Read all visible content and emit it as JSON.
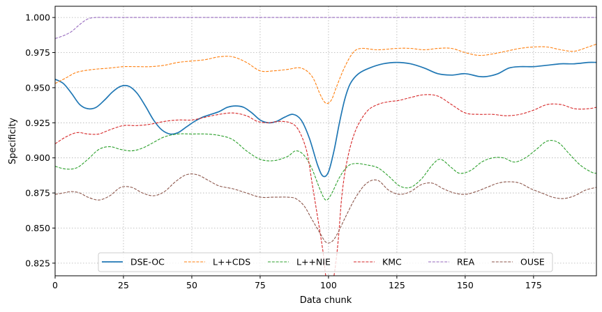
{
  "chart_data": {
    "type": "line",
    "title": "",
    "xlabel": "Data chunk",
    "ylabel": "Specificity",
    "xlim": [
      0,
      198
    ],
    "ylim": [
      0.816,
      1.008
    ],
    "xticks": [
      0,
      25,
      50,
      75,
      100,
      125,
      150,
      175
    ],
    "yticks": [
      0.825,
      0.85,
      0.875,
      0.9,
      0.925,
      0.95,
      0.975,
      1.0
    ],
    "ytick_labels": [
      "0.825",
      "0.850",
      "0.875",
      "0.900",
      "0.925",
      "0.950",
      "0.975",
      "1.000"
    ],
    "grid": true,
    "legend_position": "lower center",
    "series": [
      {
        "name": "DSE-OC",
        "color": "#1f77b4",
        "dash": "solid",
        "points": [
          [
            0,
            0.956
          ],
          [
            3,
            0.953
          ],
          [
            6,
            0.946
          ],
          [
            9,
            0.938
          ],
          [
            12,
            0.935
          ],
          [
            15,
            0.936
          ],
          [
            18,
            0.941
          ],
          [
            21,
            0.947
          ],
          [
            24,
            0.951
          ],
          [
            27,
            0.951
          ],
          [
            30,
            0.946
          ],
          [
            33,
            0.937
          ],
          [
            36,
            0.927
          ],
          [
            39,
            0.92
          ],
          [
            42,
            0.917
          ],
          [
            45,
            0.918
          ],
          [
            48,
            0.922
          ],
          [
            51,
            0.926
          ],
          [
            54,
            0.929
          ],
          [
            57,
            0.931
          ],
          [
            60,
            0.933
          ],
          [
            63,
            0.936
          ],
          [
            66,
            0.937
          ],
          [
            69,
            0.936
          ],
          [
            72,
            0.932
          ],
          [
            75,
            0.927
          ],
          [
            78,
            0.925
          ],
          [
            81,
            0.926
          ],
          [
            84,
            0.929
          ],
          [
            87,
            0.931
          ],
          [
            90,
            0.927
          ],
          [
            93,
            0.914
          ],
          [
            96,
            0.895
          ],
          [
            98,
            0.887
          ],
          [
            100,
            0.89
          ],
          [
            102,
            0.905
          ],
          [
            104,
            0.925
          ],
          [
            106,
            0.942
          ],
          [
            108,
            0.953
          ],
          [
            111,
            0.96
          ],
          [
            115,
            0.964
          ],
          [
            120,
            0.967
          ],
          [
            125,
            0.968
          ],
          [
            130,
            0.967
          ],
          [
            135,
            0.964
          ],
          [
            140,
            0.96
          ],
          [
            145,
            0.959
          ],
          [
            150,
            0.96
          ],
          [
            155,
            0.958
          ],
          [
            158,
            0.958
          ],
          [
            162,
            0.96
          ],
          [
            166,
            0.964
          ],
          [
            170,
            0.965
          ],
          [
            175,
            0.965
          ],
          [
            180,
            0.966
          ],
          [
            185,
            0.967
          ],
          [
            190,
            0.967
          ],
          [
            195,
            0.968
          ],
          [
            198,
            0.968
          ]
        ]
      },
      {
        "name": "L++CDS",
        "color": "#ff7f0e",
        "dash": "dashed",
        "points": [
          [
            0,
            0.953
          ],
          [
            4,
            0.957
          ],
          [
            8,
            0.961
          ],
          [
            14,
            0.963
          ],
          [
            20,
            0.964
          ],
          [
            25,
            0.965
          ],
          [
            30,
            0.965
          ],
          [
            35,
            0.965
          ],
          [
            40,
            0.966
          ],
          [
            45,
            0.968
          ],
          [
            50,
            0.969
          ],
          [
            55,
            0.97
          ],
          [
            60,
            0.972
          ],
          [
            65,
            0.972
          ],
          [
            70,
            0.968
          ],
          [
            75,
            0.962
          ],
          [
            80,
            0.962
          ],
          [
            85,
            0.963
          ],
          [
            90,
            0.964
          ],
          [
            94,
            0.958
          ],
          [
            97,
            0.945
          ],
          [
            99,
            0.939
          ],
          [
            101,
            0.941
          ],
          [
            103,
            0.951
          ],
          [
            106,
            0.965
          ],
          [
            109,
            0.975
          ],
          [
            112,
            0.978
          ],
          [
            118,
            0.977
          ],
          [
            125,
            0.978
          ],
          [
            130,
            0.978
          ],
          [
            135,
            0.977
          ],
          [
            140,
            0.978
          ],
          [
            145,
            0.978
          ],
          [
            150,
            0.975
          ],
          [
            155,
            0.973
          ],
          [
            160,
            0.974
          ],
          [
            165,
            0.976
          ],
          [
            170,
            0.978
          ],
          [
            175,
            0.979
          ],
          [
            180,
            0.979
          ],
          [
            185,
            0.977
          ],
          [
            190,
            0.976
          ],
          [
            195,
            0.979
          ],
          [
            198,
            0.981
          ]
        ]
      },
      {
        "name": "L++NIE",
        "color": "#2ca02c",
        "dash": "dashed",
        "points": [
          [
            0,
            0.894
          ],
          [
            4,
            0.892
          ],
          [
            8,
            0.893
          ],
          [
            12,
            0.899
          ],
          [
            16,
            0.906
          ],
          [
            20,
            0.908
          ],
          [
            24,
            0.906
          ],
          [
            28,
            0.905
          ],
          [
            32,
            0.907
          ],
          [
            36,
            0.911
          ],
          [
            40,
            0.915
          ],
          [
            45,
            0.917
          ],
          [
            50,
            0.917
          ],
          [
            55,
            0.917
          ],
          [
            60,
            0.916
          ],
          [
            65,
            0.913
          ],
          [
            70,
            0.905
          ],
          [
            75,
            0.899
          ],
          [
            80,
            0.898
          ],
          [
            85,
            0.901
          ],
          [
            88,
            0.905
          ],
          [
            91,
            0.902
          ],
          [
            94,
            0.892
          ],
          [
            97,
            0.877
          ],
          [
            99,
            0.87
          ],
          [
            101,
            0.874
          ],
          [
            104,
            0.886
          ],
          [
            107,
            0.894
          ],
          [
            110,
            0.896
          ],
          [
            114,
            0.895
          ],
          [
            118,
            0.893
          ],
          [
            122,
            0.887
          ],
          [
            126,
            0.88
          ],
          [
            130,
            0.879
          ],
          [
            134,
            0.885
          ],
          [
            138,
            0.895
          ],
          [
            141,
            0.899
          ],
          [
            145,
            0.893
          ],
          [
            148,
            0.889
          ],
          [
            152,
            0.891
          ],
          [
            156,
            0.897
          ],
          [
            160,
            0.9
          ],
          [
            164,
            0.9
          ],
          [
            168,
            0.897
          ],
          [
            172,
            0.9
          ],
          [
            176,
            0.906
          ],
          [
            180,
            0.912
          ],
          [
            184,
            0.911
          ],
          [
            188,
            0.903
          ],
          [
            192,
            0.895
          ],
          [
            196,
            0.89
          ],
          [
            198,
            0.889
          ]
        ]
      },
      {
        "name": "KMC",
        "color": "#d62728",
        "dash": "dashed",
        "points": [
          [
            0,
            0.91
          ],
          [
            4,
            0.915
          ],
          [
            8,
            0.918
          ],
          [
            12,
            0.917
          ],
          [
            16,
            0.917
          ],
          [
            20,
            0.92
          ],
          [
            25,
            0.923
          ],
          [
            30,
            0.923
          ],
          [
            35,
            0.924
          ],
          [
            40,
            0.926
          ],
          [
            45,
            0.927
          ],
          [
            50,
            0.927
          ],
          [
            55,
            0.929
          ],
          [
            60,
            0.931
          ],
          [
            65,
            0.932
          ],
          [
            70,
            0.93
          ],
          [
            74,
            0.926
          ],
          [
            78,
            0.925
          ],
          [
            82,
            0.926
          ],
          [
            86,
            0.925
          ],
          [
            89,
            0.92
          ],
          [
            92,
            0.905
          ],
          [
            94,
            0.882
          ],
          [
            96,
            0.858
          ],
          [
            98,
            0.833
          ],
          [
            99,
            0.816
          ],
          [
            100.5,
            0.806
          ],
          [
            102,
            0.816
          ],
          [
            103.5,
            0.84
          ],
          [
            105,
            0.875
          ],
          [
            107,
            0.9
          ],
          [
            110,
            0.92
          ],
          [
            114,
            0.933
          ],
          [
            118,
            0.938
          ],
          [
            122,
            0.94
          ],
          [
            126,
            0.941
          ],
          [
            130,
            0.943
          ],
          [
            135,
            0.945
          ],
          [
            140,
            0.944
          ],
          [
            145,
            0.938
          ],
          [
            150,
            0.932
          ],
          [
            155,
            0.931
          ],
          [
            160,
            0.931
          ],
          [
            165,
            0.93
          ],
          [
            170,
            0.931
          ],
          [
            175,
            0.934
          ],
          [
            180,
            0.938
          ],
          [
            185,
            0.938
          ],
          [
            190,
            0.935
          ],
          [
            195,
            0.935
          ],
          [
            198,
            0.936
          ]
        ]
      },
      {
        "name": "REA",
        "color": "#9467bd",
        "dash": "dashed",
        "points": [
          [
            0,
            0.985
          ],
          [
            3,
            0.987
          ],
          [
            6,
            0.99
          ],
          [
            9,
            0.995
          ],
          [
            12,
            0.999
          ],
          [
            15,
            1.0
          ],
          [
            20,
            1.0
          ],
          [
            40,
            1.0
          ],
          [
            80,
            1.0
          ],
          [
            120,
            1.0
          ],
          [
            160,
            1.0
          ],
          [
            198,
            1.0
          ]
        ]
      },
      {
        "name": "OUSE",
        "color": "#8c564b",
        "dash": "dashed",
        "points": [
          [
            0,
            0.874
          ],
          [
            3,
            0.875
          ],
          [
            6,
            0.876
          ],
          [
            9,
            0.875
          ],
          [
            12,
            0.872
          ],
          [
            16,
            0.87
          ],
          [
            20,
            0.873
          ],
          [
            24,
            0.879
          ],
          [
            28,
            0.879
          ],
          [
            32,
            0.875
          ],
          [
            36,
            0.873
          ],
          [
            40,
            0.876
          ],
          [
            44,
            0.883
          ],
          [
            48,
            0.888
          ],
          [
            52,
            0.888
          ],
          [
            56,
            0.884
          ],
          [
            60,
            0.88
          ],
          [
            65,
            0.878
          ],
          [
            70,
            0.875
          ],
          [
            75,
            0.872
          ],
          [
            80,
            0.872
          ],
          [
            85,
            0.872
          ],
          [
            88,
            0.871
          ],
          [
            91,
            0.866
          ],
          [
            94,
            0.856
          ],
          [
            97,
            0.846
          ],
          [
            99,
            0.84
          ],
          [
            101,
            0.84
          ],
          [
            103,
            0.845
          ],
          [
            106,
            0.857
          ],
          [
            110,
            0.872
          ],
          [
            114,
            0.882
          ],
          [
            118,
            0.884
          ],
          [
            122,
            0.877
          ],
          [
            126,
            0.874
          ],
          [
            130,
            0.876
          ],
          [
            134,
            0.881
          ],
          [
            138,
            0.882
          ],
          [
            142,
            0.878
          ],
          [
            146,
            0.875
          ],
          [
            150,
            0.874
          ],
          [
            154,
            0.876
          ],
          [
            158,
            0.879
          ],
          [
            162,
            0.882
          ],
          [
            166,
            0.883
          ],
          [
            170,
            0.882
          ],
          [
            174,
            0.878
          ],
          [
            178,
            0.875
          ],
          [
            182,
            0.872
          ],
          [
            186,
            0.871
          ],
          [
            190,
            0.873
          ],
          [
            194,
            0.877
          ],
          [
            198,
            0.879
          ]
        ]
      }
    ]
  }
}
